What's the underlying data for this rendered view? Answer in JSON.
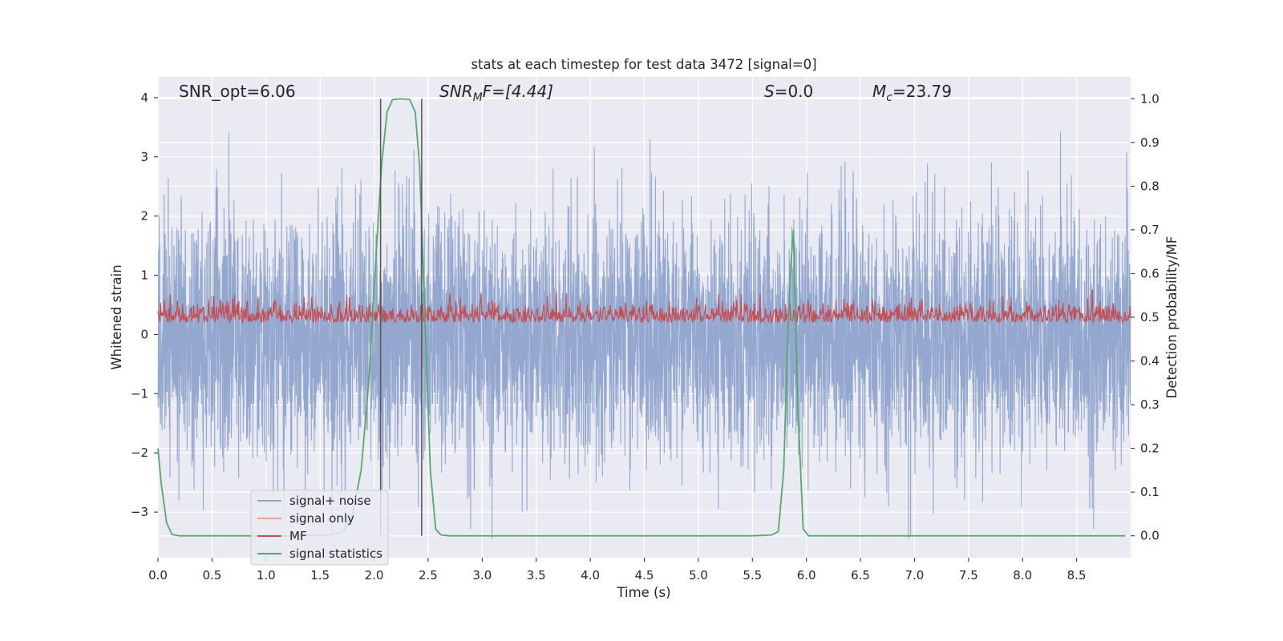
{
  "chart_data": {
    "type": "line",
    "title": "stats at each timestep for test data 3472 [signal=0]",
    "xlabel": "Time (s)",
    "ylabel": "Whitened strain",
    "ylabel_right": "Detection probability/MF",
    "xlim": [
      0.0,
      9.0
    ],
    "ylim": [
      -3.77,
      4.35
    ],
    "ylim_right": [
      -0.05,
      1.05
    ],
    "xticks": [
      "0.0",
      "0.5",
      "1.0",
      "1.5",
      "2.0",
      "2.5",
      "3.0",
      "3.5",
      "4.0",
      "4.5",
      "5.0",
      "5.5",
      "6.0",
      "6.5",
      "7.0",
      "7.5",
      "8.0",
      "8.5"
    ],
    "yticks": [
      "−3",
      "−2",
      "−1",
      "0",
      "1",
      "2",
      "3",
      "4"
    ],
    "yticks_right": [
      "0.0",
      "0.1",
      "0.2",
      "0.3",
      "0.4",
      "0.5",
      "0.6",
      "0.7",
      "0.8",
      "0.9",
      "1.0"
    ],
    "grid": true,
    "legend_position": "lower-left",
    "annotations": {
      "snr_opt": "SNR_opt=6.06",
      "snr_mf_sym": "SNR",
      "snr_mf_sub": "M",
      "snr_mf_rest": "F=[4.44]",
      "s_sym": "S",
      "s_rest": "=0.0",
      "mc_sym": "M",
      "mc_sub": "c",
      "mc_rest": "=23.79"
    },
    "vlines": [
      2.06,
      2.44
    ],
    "series": [
      {
        "name": "signal+ noise",
        "axis": "left",
        "color": "#8fa4cc",
        "noise_peak_max": 4.0,
        "noise_trough_min": -3.45
      },
      {
        "name": "signal only",
        "axis": "left",
        "color": "#e8a48a",
        "values": []
      },
      {
        "name": "MF",
        "axis": "right",
        "color": "#c44e52",
        "baseline": 0.5,
        "peak_max": 0.58
      },
      {
        "name": "signal statistics",
        "axis": "right",
        "color": "#55a868",
        "x": [
          0.0,
          0.03,
          0.08,
          0.13,
          0.2,
          0.4,
          0.8,
          1.2,
          1.6,
          1.72,
          1.8,
          1.88,
          1.95,
          2.02,
          2.07,
          2.12,
          2.17,
          2.25,
          2.33,
          2.38,
          2.42,
          2.47,
          2.52,
          2.57,
          2.62,
          2.7,
          3.5,
          4.5,
          5.5,
          5.68,
          5.74,
          5.79,
          5.82,
          5.85,
          5.88,
          5.92,
          5.97,
          6.02,
          6.1,
          7.0,
          8.0,
          8.95
        ],
        "y": [
          0.2,
          0.12,
          0.03,
          0.003,
          0.0,
          0.0,
          0.0,
          0.0,
          0.002,
          0.01,
          0.05,
          0.15,
          0.35,
          0.65,
          0.85,
          0.97,
          0.998,
          1.0,
          0.998,
          0.97,
          0.85,
          0.5,
          0.15,
          0.015,
          0.002,
          0.0,
          0.0,
          0.0,
          0.0,
          0.002,
          0.01,
          0.15,
          0.4,
          0.6,
          0.7,
          0.3,
          0.015,
          0.0,
          0.0,
          0.0,
          0.0,
          0.0
        ]
      }
    ]
  }
}
